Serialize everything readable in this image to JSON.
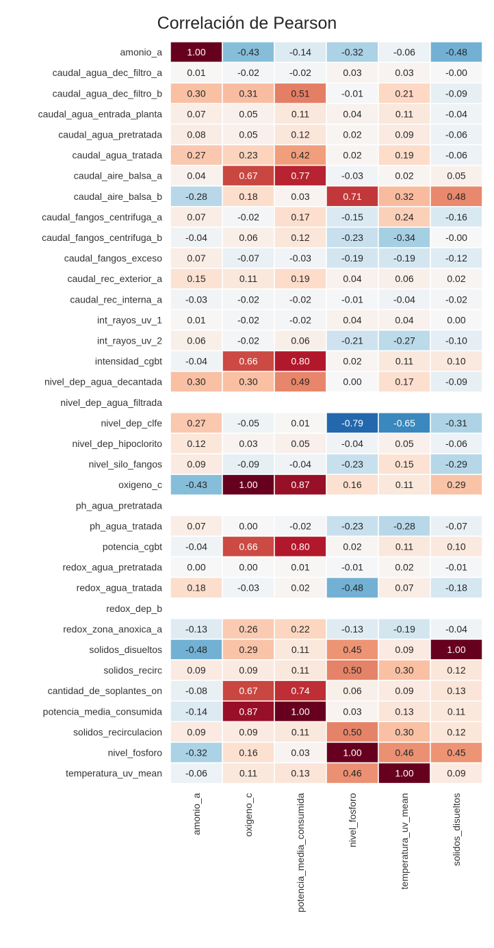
{
  "chart_data": {
    "type": "heatmap",
    "title": "Correlación de Pearson",
    "columns": [
      "amonio_a",
      "oxigeno_c",
      "potencia_media_consumida",
      "nivel_fosforo",
      "temperatura_uv_mean",
      "solidos_disueltos"
    ],
    "rows": [
      {
        "label": "amonio_a",
        "values": [
          1.0,
          -0.43,
          -0.14,
          -0.32,
          -0.06,
          -0.48
        ]
      },
      {
        "label": "caudal_agua_dec_filtro_a",
        "values": [
          0.01,
          -0.02,
          -0.02,
          0.03,
          0.03,
          -0.0
        ]
      },
      {
        "label": "caudal_agua_dec_filtro_b",
        "values": [
          0.3,
          0.31,
          0.51,
          -0.01,
          0.21,
          -0.09
        ]
      },
      {
        "label": "caudal_agua_entrada_planta",
        "values": [
          0.07,
          0.05,
          0.11,
          0.04,
          0.11,
          -0.04
        ]
      },
      {
        "label": "caudal_agua_pretratada",
        "values": [
          0.08,
          0.05,
          0.12,
          0.02,
          0.09,
          -0.06
        ]
      },
      {
        "label": "caudal_agua_tratada",
        "values": [
          0.27,
          0.23,
          0.42,
          0.02,
          0.19,
          -0.06
        ]
      },
      {
        "label": "caudal_aire_balsa_a",
        "values": [
          0.04,
          0.67,
          0.77,
          -0.03,
          0.02,
          0.05
        ]
      },
      {
        "label": "caudal_aire_balsa_b",
        "values": [
          -0.28,
          0.18,
          0.03,
          0.71,
          0.32,
          0.48
        ]
      },
      {
        "label": "caudal_fangos_centrifuga_a",
        "values": [
          0.07,
          -0.02,
          0.17,
          -0.15,
          0.24,
          -0.16
        ]
      },
      {
        "label": "caudal_fangos_centrifuga_b",
        "values": [
          -0.04,
          0.06,
          0.12,
          -0.23,
          -0.34,
          -0.0
        ]
      },
      {
        "label": "caudal_fangos_exceso",
        "values": [
          0.07,
          -0.07,
          -0.03,
          -0.19,
          -0.19,
          -0.12
        ]
      },
      {
        "label": "caudal_rec_exterior_a",
        "values": [
          0.15,
          0.11,
          0.19,
          0.04,
          0.06,
          0.02
        ]
      },
      {
        "label": "caudal_rec_interna_a",
        "values": [
          -0.03,
          -0.02,
          -0.02,
          -0.01,
          -0.04,
          -0.02
        ]
      },
      {
        "label": "int_rayos_uv_1",
        "values": [
          0.01,
          -0.02,
          -0.02,
          0.04,
          0.04,
          0.0
        ]
      },
      {
        "label": "int_rayos_uv_2",
        "values": [
          0.06,
          -0.02,
          0.06,
          -0.21,
          -0.27,
          -0.1
        ]
      },
      {
        "label": "intensidad_cgbt",
        "values": [
          -0.04,
          0.66,
          0.8,
          0.02,
          0.11,
          0.1
        ]
      },
      {
        "label": "nivel_dep_agua_decantada",
        "values": [
          0.3,
          0.3,
          0.49,
          0.0,
          0.17,
          -0.09
        ]
      },
      {
        "label": "nivel_dep_agua_filtrada",
        "values": [
          null,
          null,
          null,
          null,
          null,
          null
        ]
      },
      {
        "label": "nivel_dep_clfe",
        "values": [
          0.27,
          -0.05,
          0.01,
          -0.79,
          -0.65,
          -0.31
        ]
      },
      {
        "label": "nivel_dep_hipoclorito",
        "values": [
          0.12,
          0.03,
          0.05,
          -0.04,
          0.05,
          -0.06
        ]
      },
      {
        "label": "nivel_silo_fangos",
        "values": [
          0.09,
          -0.09,
          -0.04,
          -0.23,
          0.15,
          -0.29
        ]
      },
      {
        "label": "oxigeno_c",
        "values": [
          -0.43,
          1.0,
          0.87,
          0.16,
          0.11,
          0.29
        ]
      },
      {
        "label": "ph_agua_pretratada",
        "values": [
          null,
          null,
          null,
          null,
          null,
          null
        ]
      },
      {
        "label": "ph_agua_tratada",
        "values": [
          0.07,
          0.0,
          -0.02,
          -0.23,
          -0.28,
          -0.07
        ]
      },
      {
        "label": "potencia_cgbt",
        "values": [
          -0.04,
          0.66,
          0.8,
          0.02,
          0.11,
          0.1
        ]
      },
      {
        "label": "redox_agua_pretratada",
        "values": [
          0.0,
          0.0,
          0.01,
          -0.01,
          0.02,
          -0.01
        ]
      },
      {
        "label": "redox_agua_tratada",
        "values": [
          0.18,
          -0.03,
          0.02,
          -0.48,
          0.07,
          -0.18
        ]
      },
      {
        "label": "redox_dep_b",
        "values": [
          null,
          null,
          null,
          null,
          null,
          null
        ]
      },
      {
        "label": "redox_zona_anoxica_a",
        "values": [
          -0.13,
          0.26,
          0.22,
          -0.13,
          -0.19,
          -0.04
        ]
      },
      {
        "label": "solidos_disueltos",
        "values": [
          -0.48,
          0.29,
          0.11,
          0.45,
          0.09,
          1.0
        ]
      },
      {
        "label": "solidos_recirc",
        "values": [
          0.09,
          0.09,
          0.11,
          0.5,
          0.3,
          0.12
        ]
      },
      {
        "label": "cantidad_de_soplantes_on",
        "values": [
          -0.08,
          0.67,
          0.74,
          0.06,
          0.09,
          0.13
        ]
      },
      {
        "label": "potencia_media_consumida",
        "values": [
          -0.14,
          0.87,
          1.0,
          0.03,
          0.13,
          0.11
        ]
      },
      {
        "label": "solidos_recirculacion",
        "values": [
          0.09,
          0.09,
          0.11,
          0.5,
          0.3,
          0.12
        ]
      },
      {
        "label": "nivel_fosforo",
        "values": [
          -0.32,
          0.16,
          0.03,
          1.0,
          0.46,
          0.45
        ]
      },
      {
        "label": "temperatura_uv_mean",
        "values": [
          -0.06,
          0.11,
          0.13,
          0.46,
          1.0,
          0.09
        ]
      }
    ],
    "value_range": [
      -1,
      1
    ],
    "colormap": "RdBu_r",
    "grid": true,
    "annotations": true
  }
}
